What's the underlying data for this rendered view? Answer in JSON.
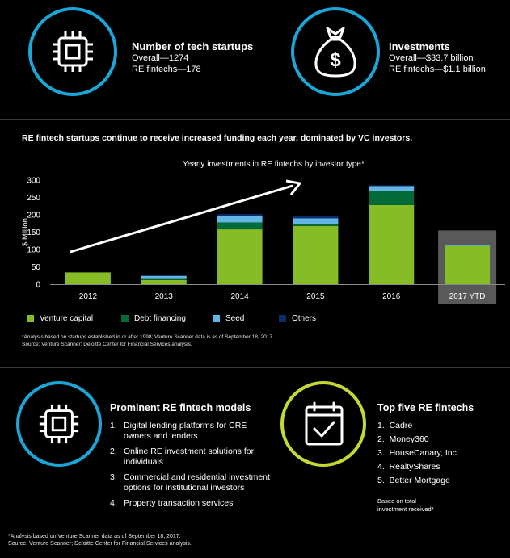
{
  "stats": [
    {
      "title": "Number of tech startups",
      "line1": "Overall—1274",
      "line2": "RE fintechs—178",
      "icon": "cpu-chip-icon"
    },
    {
      "title": "Investments",
      "line1": "Overall—$33.7 billion",
      "line2": "RE fintechs—$1.1 billion",
      "icon": "money-bag-icon"
    }
  ],
  "headline": "RE fintech startups continue to receive increased funding each year, dominated by VC investors.",
  "chart_data": {
    "type": "bar",
    "title": "Yearly investments in RE fintechs by investor type*",
    "xlabel": "",
    "ylabel": "$ Million",
    "ylim": [
      0,
      300
    ],
    "yticks": [
      0,
      50,
      100,
      150,
      200,
      250,
      300
    ],
    "categories": [
      "2012",
      "2013",
      "2014",
      "2015",
      "2016",
      "2017 YTD"
    ],
    "series": [
      {
        "name": "Venture capital",
        "color": "#86bc25",
        "values": [
          34,
          12,
          158,
          168,
          228,
          110
        ]
      },
      {
        "name": "Debt financing",
        "color": "#046a38",
        "values": [
          0,
          5,
          20,
          6,
          40,
          0
        ]
      },
      {
        "name": "Seed",
        "color": "#62b5e5",
        "values": [
          0,
          7,
          18,
          16,
          15,
          2
        ]
      },
      {
        "name": "Others",
        "color": "#0d2c6c",
        "values": [
          0,
          1,
          6,
          6,
          2,
          0
        ]
      }
    ],
    "highlight_category": "2017 YTD",
    "trend_arrow": true
  },
  "chart_note": "*Analysis based on startups established in or after 1998; Venture Scanner data is as of September 18, 2017.",
  "chart_source": "Source: Venture Scanner; Deloitte Center for Financial Services analysis.",
  "models": {
    "title": "Prominent RE fintech models",
    "icon": "cpu-chip-icon",
    "items": [
      {
        "num": "1.",
        "text": "Digital lending platforms for CRE owners and lenders"
      },
      {
        "num": "2.",
        "text": "Online RE investment solutions for individuals"
      },
      {
        "num": "3.",
        "text": "Commercial and residential investment options for institutional investors"
      },
      {
        "num": "4.",
        "text": "Property transaction services"
      }
    ]
  },
  "top_five": {
    "title": "Top five RE fintechs",
    "icon": "calendar-check-icon",
    "items": [
      "1.  Cadre",
      "2.  Money360",
      "3.  HouseCanary, Inc.",
      "4.  RealtyShares",
      "5.  Better Mortgage"
    ],
    "basis": "Based on total investment received*"
  },
  "footer_note": "*Analysis based on Venture Scanner data as of September 18, 2017.",
  "footer_source": "Source: Venture Scanner; Deloitte Center for Financial Services analysis."
}
